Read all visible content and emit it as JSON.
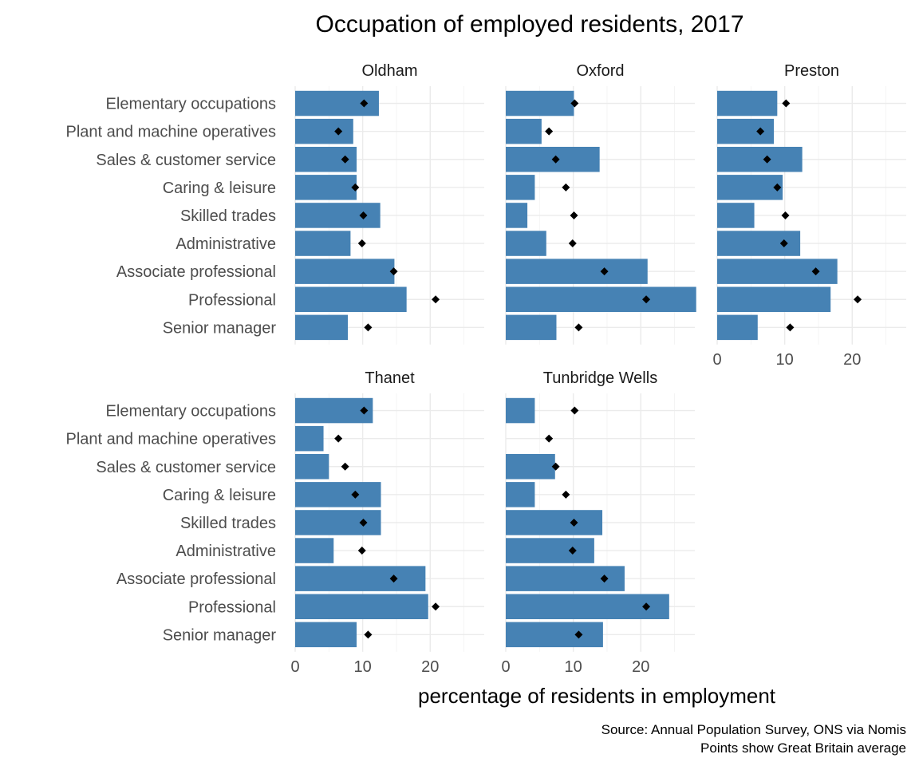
{
  "colors": {
    "bar": "#4682b4",
    "point": "#000000",
    "grid": "#ebebeb",
    "text": "#4d4d4d"
  },
  "chart_data": {
    "type": "bar",
    "orientation": "horizontal",
    "title": "Occupation of employed residents, 2017",
    "xlabel": "percentage of residents in employment",
    "ylabel": "",
    "caption_lines": [
      "Source: Annual Population Survey, ONS via Nomis",
      "Points show Great Britain average"
    ],
    "xlim": [
      0,
      28
    ],
    "xticks": [
      0,
      10,
      20
    ],
    "grid": true,
    "categories": [
      "Elementary occupations",
      "Plant and machine operatives",
      "Sales & customer service",
      "Caring & leisure",
      "Skilled trades",
      "Administrative",
      "Associate professional",
      "Professional",
      "Senior manager"
    ],
    "gb_average": [
      10.2,
      6.4,
      7.4,
      8.9,
      10.1,
      9.9,
      14.6,
      20.8,
      10.8
    ],
    "panels": [
      {
        "name": "Oldham",
        "values": [
          12.4,
          8.6,
          9.1,
          9.1,
          12.6,
          8.2,
          14.7,
          16.5,
          7.8
        ]
      },
      {
        "name": "Oxford",
        "values": [
          10.1,
          5.3,
          13.9,
          4.3,
          3.2,
          6.0,
          21.0,
          28.2,
          7.5
        ]
      },
      {
        "name": "Preston",
        "values": [
          8.9,
          8.4,
          12.6,
          9.7,
          5.5,
          12.3,
          17.8,
          16.8,
          6.0
        ]
      },
      {
        "name": "Thanet",
        "values": [
          11.5,
          4.2,
          5.0,
          12.7,
          12.7,
          5.7,
          19.3,
          19.7,
          9.1
        ]
      },
      {
        "name": "Tunbridge Wells",
        "values": [
          4.3,
          null,
          7.3,
          4.3,
          14.3,
          13.1,
          17.6,
          24.2,
          14.4
        ]
      }
    ]
  }
}
